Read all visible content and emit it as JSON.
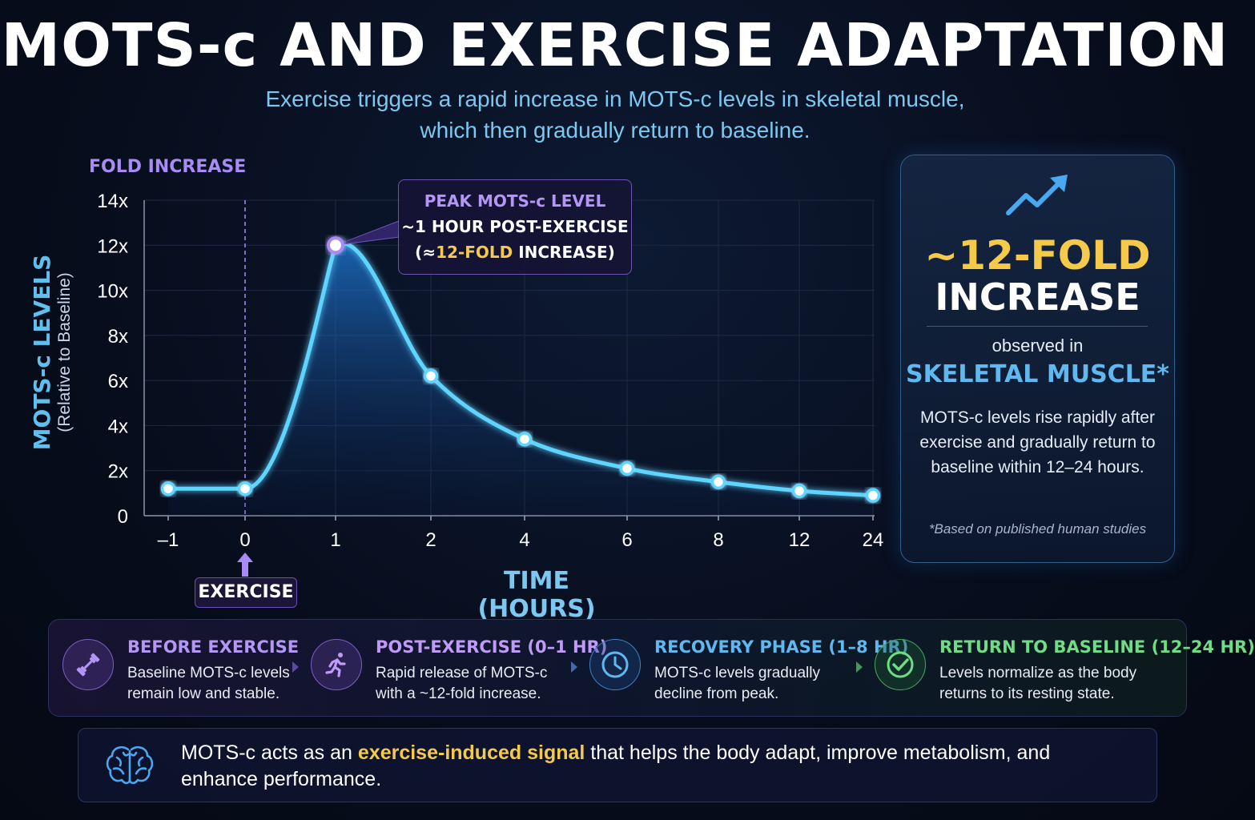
{
  "title": "MOTS-c AND EXERCISE ADAPTATION",
  "subtitle_line1": "Exercise triggers a rapid increase in MOTS-c levels in skeletal muscle,",
  "subtitle_line2": "which then gradually return to baseline.",
  "y_top_label": "FOLD INCREASE",
  "y_axis_main": "MOTS-c LEVELS",
  "y_axis_sub": "(Relative to Baseline)",
  "x_axis_title": "TIME (HOURS)",
  "exercise_badge": "EXERCISE",
  "callout": {
    "line1": "PEAK MOTS-c LEVEL",
    "line2": "~1 HOUR POST-EXERCISE",
    "line3_pre": "(≈",
    "line3_hl": "12-FOLD",
    "line3_post": " INCREASE)"
  },
  "side_card": {
    "big_hl": "~12-FOLD",
    "big2": "INCREASE",
    "observed": "observed in",
    "muscle": "SKELETAL MUSCLE*",
    "desc": "MOTS-c levels rise rapidly after exercise and gradually return to baseline within 12–24 hours.",
    "note": "*Based on published human studies"
  },
  "phases": [
    {
      "title": "BEFORE EXERCISE",
      "desc": "Baseline MOTS-c levels remain low and stable.",
      "icon": "dumbbell-icon",
      "color": "#a98bf5"
    },
    {
      "title": "POST-EXERCISE (0–1 HR)",
      "desc": "Rapid release of MOTS-c with a ~12-fold increase.",
      "icon": "runner-icon",
      "color": "#b98cf8"
    },
    {
      "title": "RECOVERY PHASE (1–8 HR)",
      "desc": "MOTS-c levels gradually decline from peak.",
      "icon": "clock-icon",
      "color": "#5fb8ef"
    },
    {
      "title": "RETURN TO BASELINE (12–24 HR)",
      "desc": "Levels normalize as the body returns to its resting state.",
      "icon": "check-circle-icon",
      "color": "#6fdc86"
    }
  ],
  "bottom": {
    "pre": "MOTS-c acts as an ",
    "hl": "exercise-induced signal",
    "post": " that helps the body adapt, improve metabolism, and enhance performance.",
    "icon": "brain-icon"
  },
  "chart_data": {
    "type": "line",
    "x_categories": [
      "–1",
      "0",
      "1",
      "2",
      "4",
      "6",
      "8",
      "12",
      "24"
    ],
    "series": [
      {
        "values": [
          1.2,
          1.2,
          12,
          6.2,
          3.4,
          2.1,
          1.5,
          1.1,
          0.9
        ]
      }
    ],
    "xlabel": "TIME (HOURS)",
    "ylabel": "MOTS-c LEVELS (Relative to Baseline)",
    "ylim": [
      0,
      14
    ],
    "y_ticks": [
      0,
      2,
      4,
      6,
      8,
      10,
      12,
      14
    ],
    "y_tick_labels": [
      "0",
      "2x",
      "4x",
      "6x",
      "8x",
      "10x",
      "12x",
      "14x"
    ],
    "grid": true,
    "exercise_marker_x": "0",
    "line_color": "#5fd4ff",
    "accent_color": "#a98bf5"
  }
}
